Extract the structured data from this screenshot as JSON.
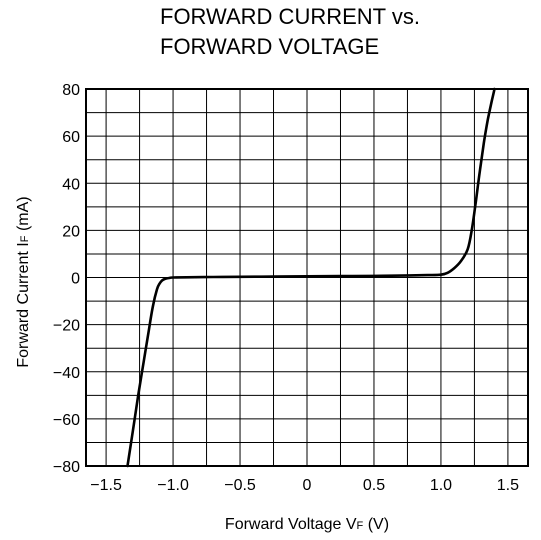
{
  "chart_data": {
    "type": "line",
    "title": [
      "FORWARD CURRENT vs.",
      "FORWARD VOLTAGE"
    ],
    "xlabel": "Forward Voltage  V",
    "xlabel_sub": "F",
    "xlabel_unit": " (V)",
    "ylabel": "Forward Current  I",
    "ylabel_sub": "F",
    "ylabel_unit": " (mA)",
    "xlim": [
      -1.65,
      1.65
    ],
    "ylim": [
      -80,
      80
    ],
    "x_ticks": [
      {
        "value": -1.5,
        "label": "−1.5"
      },
      {
        "value": -1.0,
        "label": "−1.0"
      },
      {
        "value": -0.5,
        "label": "−0.5"
      },
      {
        "value": 0,
        "label": "0"
      },
      {
        "value": 0.5,
        "label": "0.5"
      },
      {
        "value": 1.0,
        "label": "1.0"
      },
      {
        "value": 1.5,
        "label": "1.5"
      }
    ],
    "y_ticks": [
      {
        "value": 80,
        "label": "80"
      },
      {
        "value": 60,
        "label": "60"
      },
      {
        "value": 40,
        "label": "40"
      },
      {
        "value": 20,
        "label": "20"
      },
      {
        "value": 0,
        "label": "0"
      },
      {
        "value": -20,
        "label": "−20"
      },
      {
        "value": -40,
        "label": "−40"
      },
      {
        "value": -60,
        "label": "−60"
      },
      {
        "value": -80,
        "label": "−80"
      }
    ],
    "x_grid": [
      -1.25,
      -0.75,
      -0.25,
      0.25,
      0.75,
      1.25
    ],
    "y_grid": [
      70,
      50,
      30,
      10,
      -10,
      -30,
      -50,
      -70
    ],
    "grid": true,
    "series": [
      {
        "x": [
          -1.34,
          -1.3,
          -1.26,
          -1.22,
          -1.18,
          -1.15,
          -1.12,
          -1.1,
          -1.08,
          -1.06,
          -1.03,
          -1.0,
          -0.9,
          -0.7,
          -0.5,
          -0.25,
          0,
          0.25,
          0.5,
          0.7,
          0.9,
          1.0,
          1.05,
          1.1,
          1.15,
          1.2,
          1.23,
          1.26,
          1.29,
          1.32,
          1.35,
          1.38,
          1.4
        ],
        "y": [
          -80,
          -65,
          -50,
          -36,
          -22,
          -12,
          -5,
          -2.5,
          -1.2,
          -0.6,
          -0.2,
          0,
          0.1,
          0.2,
          0.3,
          0.4,
          0.5,
          0.6,
          0.7,
          0.8,
          1.0,
          1.2,
          2,
          4,
          7,
          12,
          20,
          32,
          45,
          57,
          67,
          75,
          80
        ]
      }
    ]
  }
}
